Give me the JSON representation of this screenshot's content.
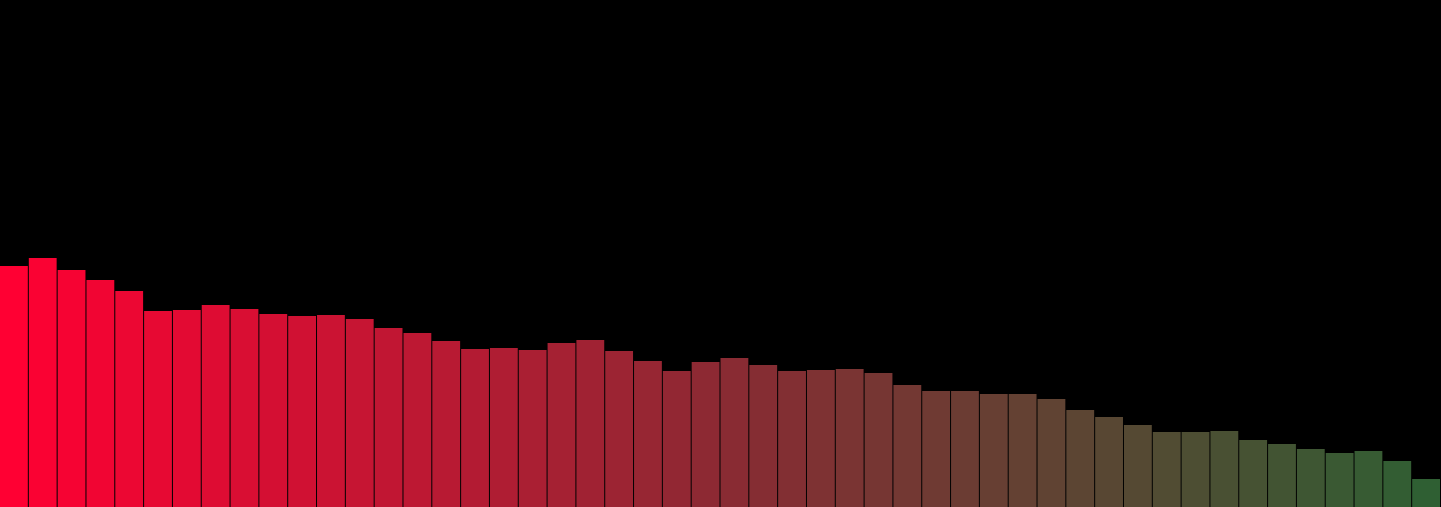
{
  "chart_data": {
    "type": "bar",
    "title": "",
    "xlabel": "",
    "ylabel": "",
    "ylim": [
      0,
      507
    ],
    "grid": false,
    "legend": "none",
    "values": [
      241,
      249,
      237,
      227,
      216,
      196,
      197,
      202,
      198,
      193,
      191,
      192,
      188,
      179,
      174,
      166,
      158,
      159,
      157,
      164,
      167,
      156,
      146,
      136,
      145,
      149,
      142,
      136,
      137,
      138,
      134,
      122,
      116,
      116,
      113,
      113,
      108,
      97,
      90,
      82,
      75,
      75,
      76,
      67,
      63,
      58,
      54,
      56,
      46,
      28
    ],
    "colors": {
      "background": "#000000",
      "bar_start": "#ff0033",
      "bar_mid": "#8b2a33",
      "bar_end": "#2f5f33",
      "separator": "#000000"
    }
  }
}
